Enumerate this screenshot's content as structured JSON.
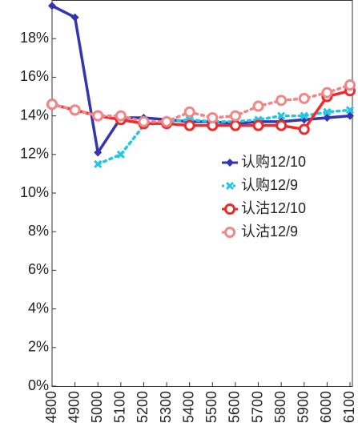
{
  "chart_data": {
    "type": "line",
    "categories": [
      "4800",
      "4900",
      "5000",
      "5100",
      "5200",
      "5300",
      "5400",
      "5500",
      "5600",
      "5700",
      "5800",
      "5900",
      "6000",
      "6100"
    ],
    "ylim": [
      0,
      20
    ],
    "yticks": [
      {
        "value": 0,
        "label": "0%"
      },
      {
        "value": 2,
        "label": "2%"
      },
      {
        "value": 4,
        "label": "4%"
      },
      {
        "value": 6,
        "label": "6%"
      },
      {
        "value": 8,
        "label": "8%"
      },
      {
        "value": 10,
        "label": "10%"
      },
      {
        "value": 12,
        "label": "12%"
      },
      {
        "value": 14,
        "label": "14%"
      },
      {
        "value": 16,
        "label": "16%"
      },
      {
        "value": 18,
        "label": "18%"
      }
    ],
    "series": [
      {
        "name": "认购12/10",
        "color": "#3535b0",
        "marker": "diamond",
        "style": "solid",
        "values": [
          19.7,
          19.1,
          12.1,
          13.9,
          13.9,
          13.8,
          13.7,
          13.7,
          13.6,
          13.7,
          13.7,
          13.8,
          13.9,
          14.0
        ]
      },
      {
        "name": "认购12/9",
        "color": "#25c6e3",
        "marker": "x",
        "style": "dotted",
        "values": [
          null,
          null,
          11.5,
          12.0,
          13.5,
          13.7,
          13.8,
          13.7,
          13.7,
          13.8,
          14.0,
          14.0,
          14.2,
          14.3
        ]
      },
      {
        "name": "认沽12/10",
        "color": "#ee2a2a",
        "marker": "circle",
        "style": "solid",
        "values": [
          14.6,
          14.3,
          14.0,
          13.8,
          13.6,
          13.6,
          13.5,
          13.5,
          13.5,
          13.5,
          13.5,
          13.3,
          15.0,
          15.3
        ]
      },
      {
        "name": "认沽12/9",
        "color": "#f28686",
        "marker": "circle",
        "style": "dotted",
        "values": [
          14.6,
          14.3,
          14.0,
          14.0,
          13.7,
          13.7,
          14.2,
          13.9,
          14.0,
          14.5,
          14.8,
          14.9,
          15.2,
          15.6
        ]
      }
    ]
  }
}
